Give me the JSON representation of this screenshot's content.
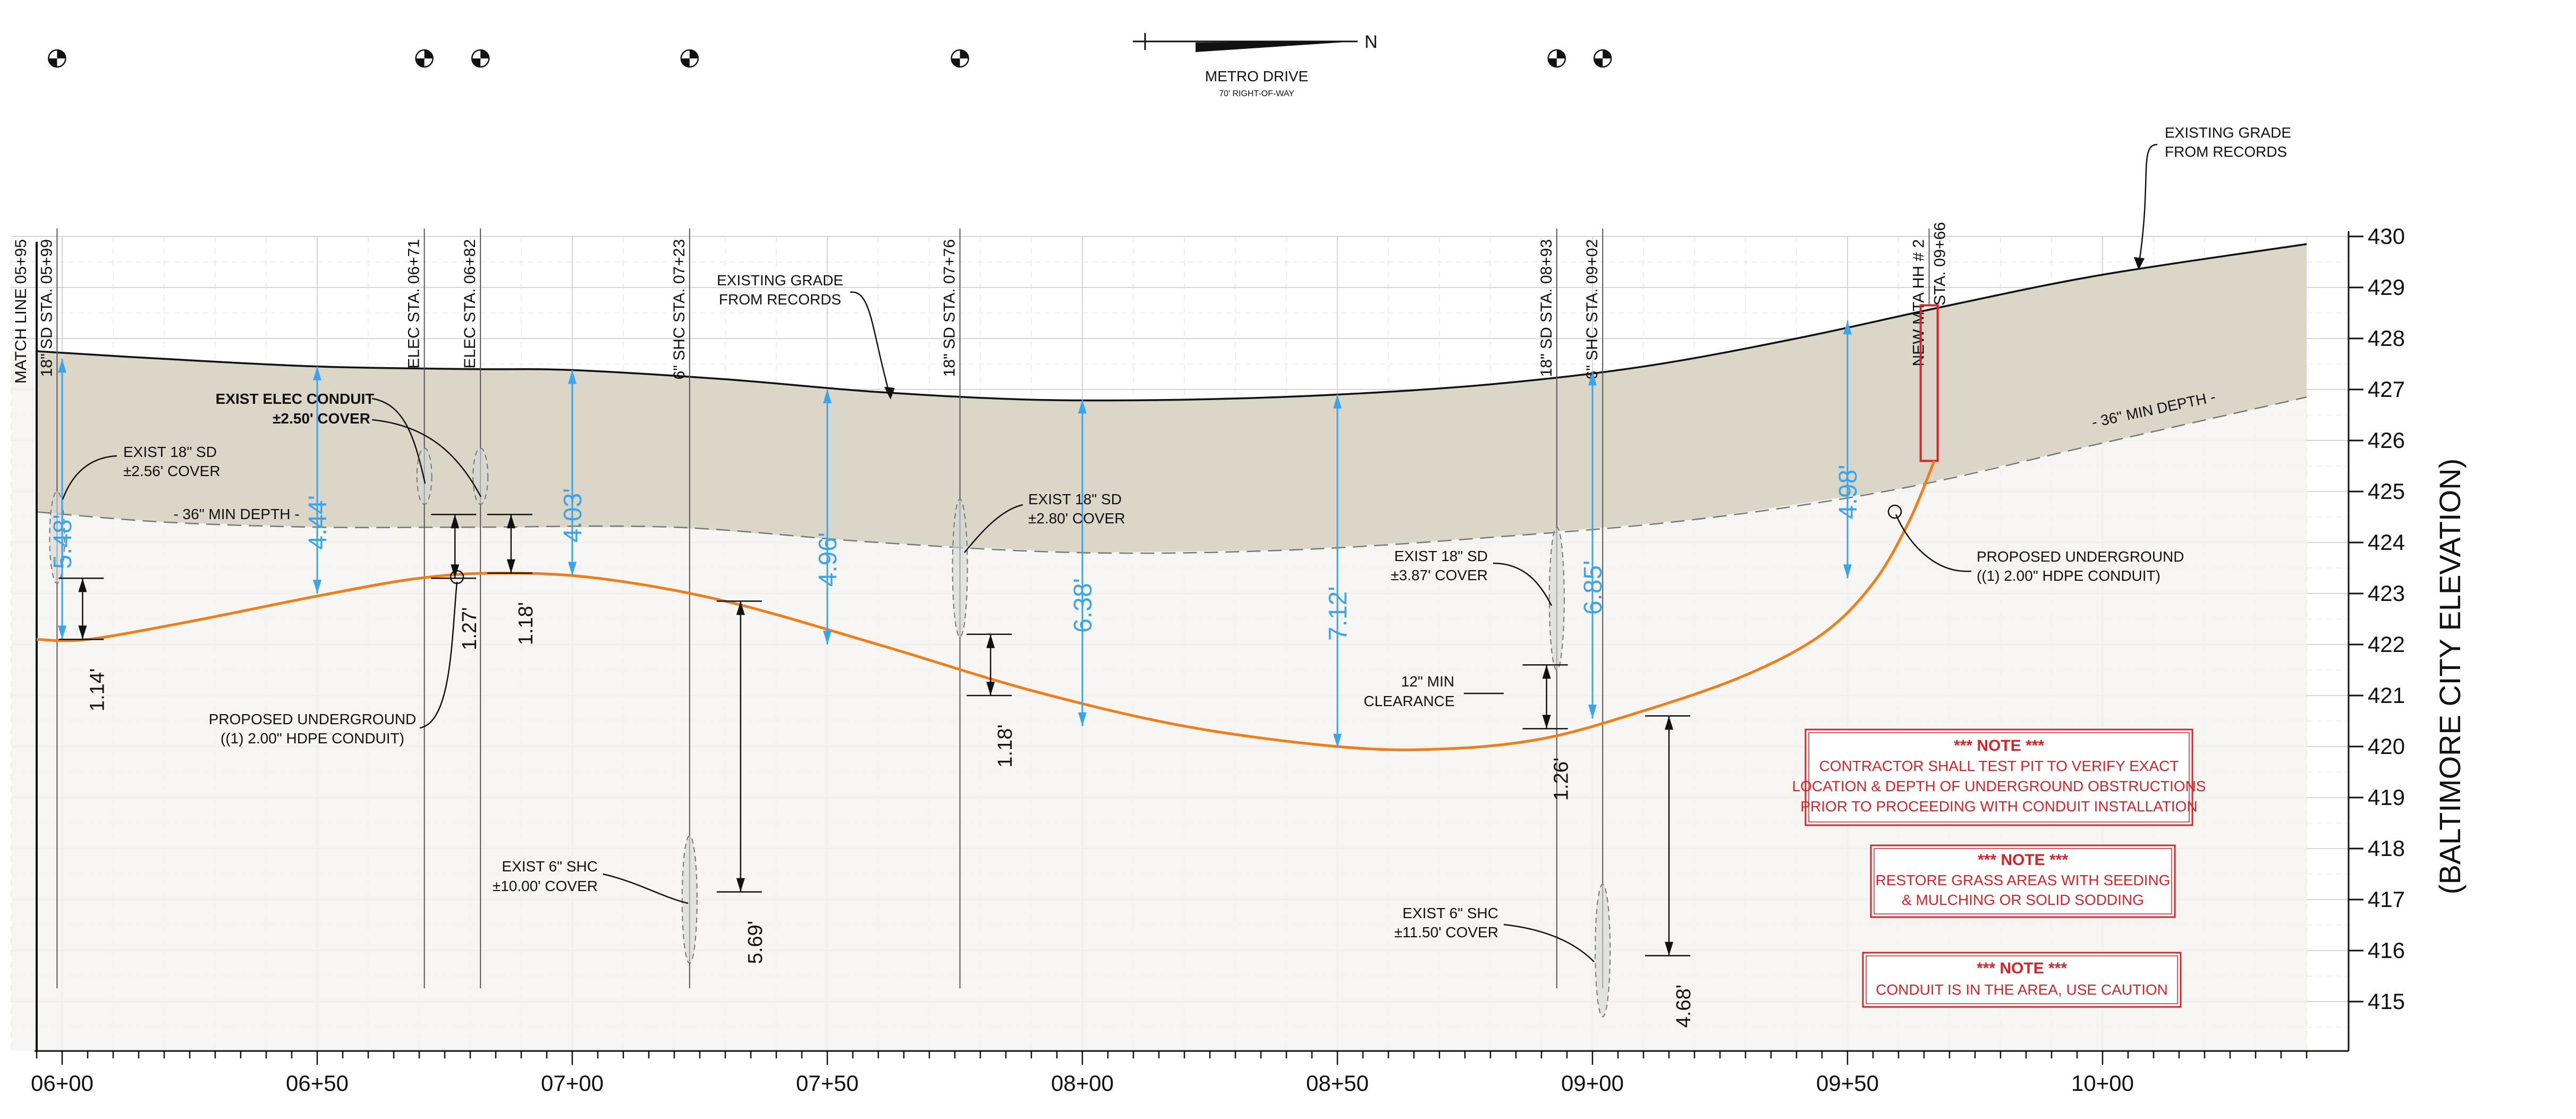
{
  "north_arrow": {
    "label": "N"
  },
  "street": {
    "name": "METRO DRIVE",
    "row": "70' RIGHT-OF-WAY"
  },
  "elevation_axis": {
    "title": "(BALTIMORE CITY ELEVATION)",
    "ticks": [
      430,
      429,
      428,
      427,
      426,
      425,
      424,
      423,
      422,
      421,
      420,
      419,
      418,
      417,
      416,
      415
    ]
  },
  "station_axis": {
    "ticks": [
      {
        "label": "06+00",
        "sta": 600
      },
      {
        "label": "06+50",
        "sta": 650
      },
      {
        "label": "07+00",
        "sta": 700
      },
      {
        "label": "07+50",
        "sta": 750
      },
      {
        "label": "08+00",
        "sta": 800
      },
      {
        "label": "08+50",
        "sta": 850
      },
      {
        "label": "09+00",
        "sta": 900
      },
      {
        "label": "09+50",
        "sta": 950
      },
      {
        "label": "10+00",
        "sta": 1000
      }
    ]
  },
  "crossings": [
    {
      "label": "MATCH LINE  05+95",
      "sta": 595,
      "marker": false
    },
    {
      "label": "18\" SD  STA. 05+99",
      "sta": 599,
      "marker": true
    },
    {
      "label": "ELEC  STA. 06+71",
      "sta": 671,
      "marker": true
    },
    {
      "label": "ELEC  STA. 06+82",
      "sta": 682,
      "marker": true
    },
    {
      "label": "6\" SHC  STA. 07+23",
      "sta": 723,
      "marker": true
    },
    {
      "label": "18\" SD  STA. 07+76",
      "sta": 776,
      "marker": true
    },
    {
      "label": "18\" SD  STA. 08+93",
      "sta": 893,
      "marker": true
    },
    {
      "label": "6\" SHC  STA. 09+02",
      "sta": 902,
      "marker": true
    },
    {
      "label": "NEW MTA HH # 2",
      "label2": "STA. 09+66",
      "sta": 966,
      "marker": false
    }
  ],
  "grade_profile": [
    [
      595,
      427.75
    ],
    [
      620,
      427.6
    ],
    [
      650,
      427.45
    ],
    [
      680,
      427.4
    ],
    [
      700,
      427.38
    ],
    [
      730,
      427.2
    ],
    [
      760,
      426.95
    ],
    [
      790,
      426.8
    ],
    [
      820,
      426.8
    ],
    [
      850,
      426.9
    ],
    [
      880,
      427.1
    ],
    [
      910,
      427.45
    ],
    [
      940,
      428.0
    ],
    [
      970,
      428.65
    ],
    [
      1000,
      429.25
    ],
    [
      1040,
      429.85
    ]
  ],
  "min_depth_profile": [
    [
      595,
      424.6
    ],
    [
      620,
      424.4
    ],
    [
      650,
      424.3
    ],
    [
      680,
      424.3
    ],
    [
      720,
      424.3
    ],
    [
      760,
      424.0
    ],
    [
      800,
      423.8
    ],
    [
      840,
      423.85
    ],
    [
      880,
      424.1
    ],
    [
      920,
      424.45
    ],
    [
      960,
      425.05
    ],
    [
      1000,
      425.95
    ],
    [
      1040,
      426.85
    ]
  ],
  "conduit_profile": [
    [
      595,
      422.1
    ],
    [
      605,
      422.1
    ],
    [
      625,
      422.45
    ],
    [
      650,
      422.95
    ],
    [
      670,
      423.3
    ],
    [
      686,
      423.4
    ],
    [
      705,
      423.3
    ],
    [
      730,
      422.85
    ],
    [
      760,
      422.0
    ],
    [
      790,
      421.1
    ],
    [
      820,
      420.4
    ],
    [
      850,
      420.0
    ],
    [
      870,
      419.95
    ],
    [
      890,
      420.15
    ],
    [
      910,
      420.7
    ],
    [
      930,
      421.4
    ],
    [
      945,
      422.2
    ],
    [
      955,
      423.2
    ],
    [
      962,
      424.4
    ],
    [
      967,
      425.6
    ]
  ],
  "cover_dims": [
    {
      "sta": 600,
      "top": 427.6,
      "bot": 422.1,
      "label": "5.48'",
      "dx": 0
    },
    {
      "sta": 650,
      "top": 427.45,
      "bot": 423.0,
      "label": "4.44'",
      "dx": 0
    },
    {
      "sta": 700,
      "top": 427.38,
      "bot": 423.35,
      "label": "4.03'",
      "dx": 0
    },
    {
      "sta": 750,
      "top": 427.0,
      "bot": 422.0,
      "label": "4.96'",
      "dx": 0
    },
    {
      "sta": 800,
      "top": 426.8,
      "bot": 420.4,
      "label": "6.38'",
      "dx": 0
    },
    {
      "sta": 850,
      "top": 426.9,
      "bot": 419.98,
      "label": "7.12'",
      "dx": 0
    },
    {
      "sta": 900,
      "top": 427.35,
      "bot": 420.55,
      "label": "6.85'",
      "dx": 0
    },
    {
      "sta": 950,
      "top": 428.35,
      "bot": 423.3,
      "label": "4.98'",
      "dx": 0
    }
  ],
  "clearance_dims": [
    {
      "sta": 604,
      "top": 423.3,
      "bot": 422.1,
      "label": "1.14'"
    },
    {
      "sta": 677,
      "top": 424.55,
      "bot": 423.3,
      "label": "1.27'"
    },
    {
      "sta": 688,
      "top": 424.55,
      "bot": 423.4,
      "label": "1.18'"
    },
    {
      "sta": 733,
      "top": 422.85,
      "bot": 417.15,
      "label": "5.69'"
    },
    {
      "sta": 782,
      "top": 422.2,
      "bot": 421.0,
      "label": "1.18'"
    },
    {
      "sta": 891,
      "top": 421.6,
      "bot": 420.35,
      "label": "1.26'"
    },
    {
      "sta": 915,
      "top": 420.6,
      "bot": 415.9,
      "label": "4.68'"
    }
  ],
  "utilities": [
    {
      "sta": 599,
      "elev": 424.1,
      "ry": 0.9
    },
    {
      "sta": 671,
      "elev": 425.3,
      "ry": 0.55
    },
    {
      "sta": 682,
      "elev": 425.3,
      "ry": 0.55
    },
    {
      "sta": 723,
      "elev": 417.0,
      "ry": 1.25
    },
    {
      "sta": 776,
      "elev": 423.5,
      "ry": 1.35
    },
    {
      "sta": 893,
      "elev": 422.9,
      "ry": 1.4
    },
    {
      "sta": 902,
      "elev": 416.0,
      "ry": 1.3
    }
  ],
  "callouts": {
    "existing_grade_left": {
      "line1": "EXISTING GRADE",
      "line2": "FROM RECORDS"
    },
    "existing_grade_right": {
      "line1": "EXISTING GRADE",
      "line2": "FROM RECORDS"
    },
    "min_depth_left": "- 36\" MIN DEPTH -",
    "min_depth_right": "- 36\" MIN DEPTH -",
    "elec_conduit": {
      "line1": "EXIST ELEC CONDUIT",
      "line2": "±2.50' COVER"
    },
    "sd_599": {
      "line1": "EXIST 18\" SD",
      "line2": "±2.56' COVER"
    },
    "sd_776": {
      "line1": "EXIST 18\" SD",
      "line2": "±2.80' COVER"
    },
    "sd_893": {
      "line1": "EXIST 18\" SD",
      "line2": "±3.87' COVER"
    },
    "shc_723": {
      "line1": "EXIST 6\" SHC",
      "line2": "±10.00' COVER"
    },
    "shc_902": {
      "line1": "EXIST 6\" SHC",
      "line2": "±11.50' COVER"
    },
    "proposed_left": {
      "line1": "PROPOSED UNDERGROUND",
      "line2": "((1) 2.00\" HDPE CONDUIT)"
    },
    "proposed_right": {
      "line1": "PROPOSED UNDERGROUND",
      "line2": "((1) 2.00\" HDPE CONDUIT)"
    },
    "clearance": {
      "line1": "12\" MIN",
      "line2": "CLEARANCE"
    }
  },
  "notes": [
    {
      "title": "*** NOTE ***",
      "lines": [
        "CONTRACTOR SHALL TEST PIT TO VERIFY EXACT",
        "LOCATION & DEPTH OF UNDERGROUND OBSTRUCTIONS",
        "PRIOR TO PROCEEDING WITH CONDUIT INSTALLATION"
      ]
    },
    {
      "title": "*** NOTE ***",
      "lines": [
        "RESTORE GRASS AREAS WITH SEEDING",
        "& MULCHING OR SOLID SODDING"
      ]
    },
    {
      "title": "*** NOTE ***",
      "lines": [
        "CONDUIT IS IN THE AREA, USE CAUTION"
      ]
    }
  ],
  "colors": {
    "conduit": "#f07d1a",
    "dimension": "#3aa4ec",
    "note": "#d9232a",
    "grade_fill": "#d8d3c3",
    "soil_fill": "#f4f3ee",
    "grid": "#c9c9c9"
  }
}
